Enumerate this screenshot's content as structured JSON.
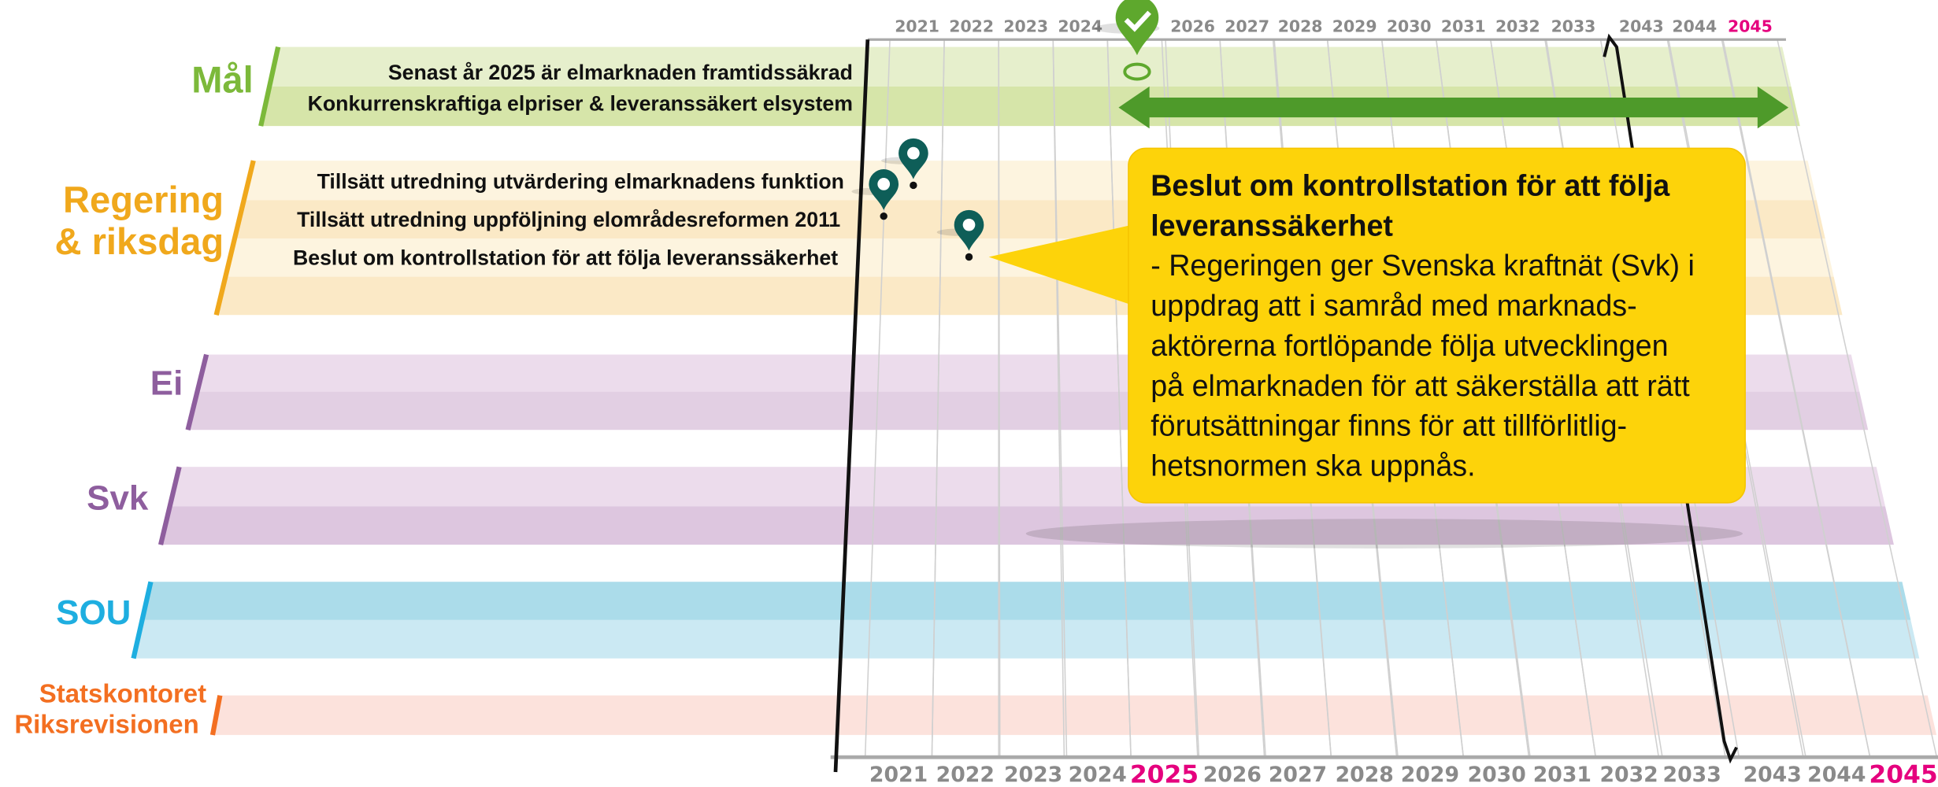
{
  "years_top": [
    2021,
    2022,
    2023,
    2024,
    2026,
    2027,
    2028,
    2029,
    2030,
    2031,
    2032,
    2033,
    2043,
    2044,
    2045
  ],
  "years_bottom": [
    2021,
    2022,
    2023,
    2024,
    2025,
    2026,
    2027,
    2028,
    2029,
    2030,
    2031,
    2032,
    2033,
    2043,
    2044,
    2045
  ],
  "highlight_years": [
    2025,
    2045
  ],
  "highlight_color": "#e5007e",
  "rows": [
    {
      "label": [
        "Mål"
      ],
      "color": "#7cb93a",
      "items": [
        "Senast år 2025 är elmarknaden framtidssäkrad",
        "Konkurrenskraftiga elpriser & leveranssäkert elsystem"
      ]
    },
    {
      "label": [
        "Regering",
        "& riksdag"
      ],
      "color": "#f0a81c",
      "items": [
        "Tillsätt utredning utvärdering elmarknadens funktion",
        "Tillsätt utredning uppföljning elområdesreformen 2011",
        "Beslut om kontrollstation för att följa leveranssäkerhet"
      ]
    },
    {
      "label": [
        "Ei"
      ],
      "color": "#8e5e9e",
      "items": []
    },
    {
      "label": [
        "Svk"
      ],
      "color": "#8e5e9e",
      "items": []
    },
    {
      "label": [
        "SOU"
      ],
      "color": "#1eaee0",
      "items": []
    },
    {
      "label": [
        "Statskontoret",
        "Riksrevisionen"
      ],
      "color": "#f36f21",
      "items": []
    }
  ],
  "callout": {
    "title": [
      "Beslut om kontrollstation för att följa",
      "leveranssäkerhet"
    ],
    "body": [
      "- Regeringen ger Svenska kraftnät (Svk) i",
      "uppdrag att i samråd med marknads-",
      "aktörerna fortlöpande följa utvecklingen",
      "på elmarknaden för att säkerställa att rätt",
      "förutsättningar finns för att tillförlitlig-",
      "hetsnormen ska uppnås."
    ]
  }
}
